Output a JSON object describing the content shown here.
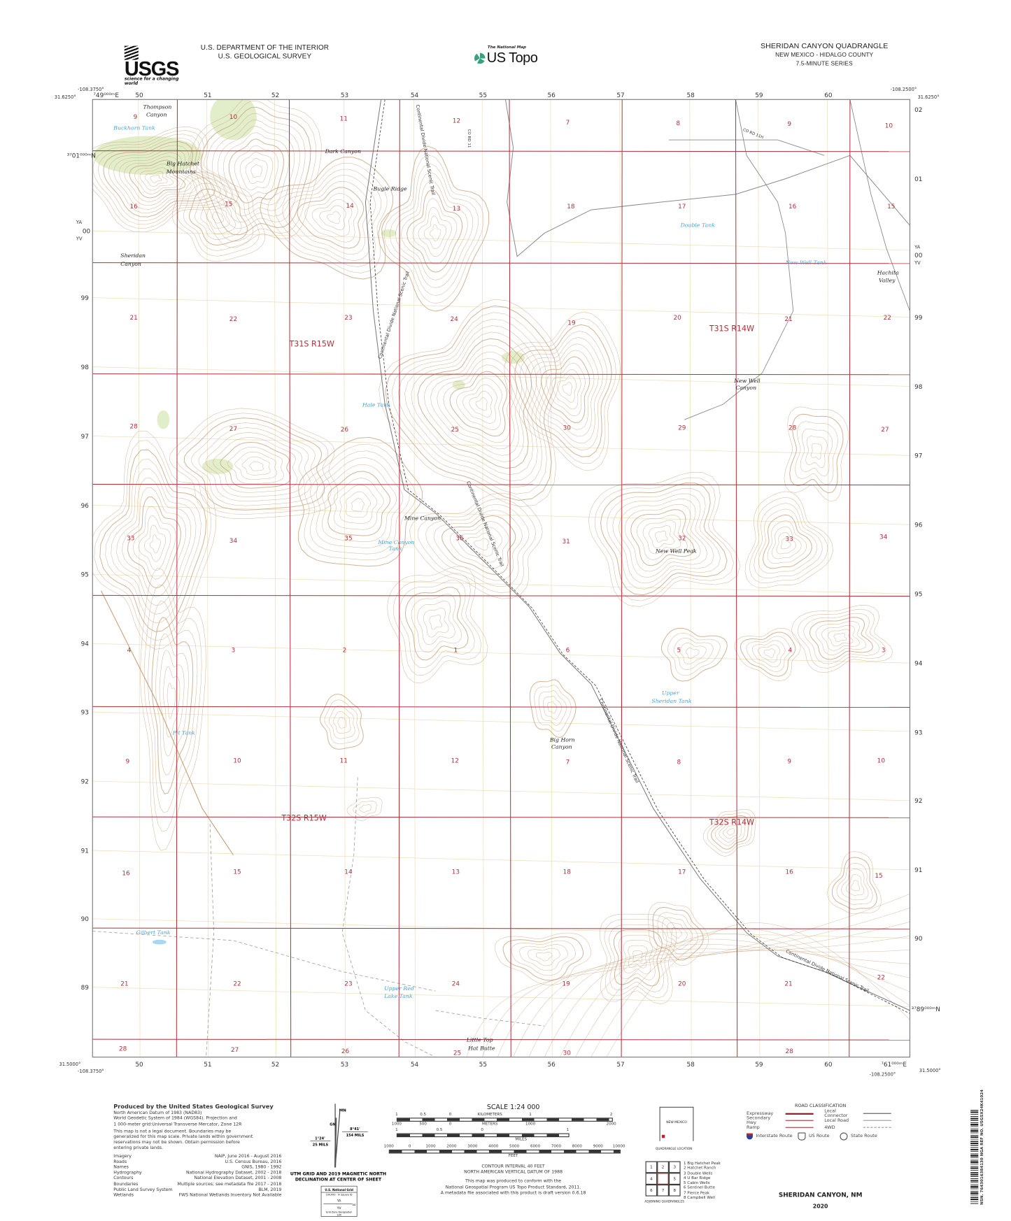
{
  "header": {
    "agency_logo_text": "USGS",
    "agency_logo_tagline": "science for a changing world",
    "department": "U.S. DEPARTMENT OF THE INTERIOR",
    "survey": "U.S. GEOLOGICAL SURVEY",
    "national_map_small": "The National Map",
    "national_map_big": "US Topo",
    "quad_title": "SHERIDAN CANYON QUADRANGLE",
    "state_county": "NEW MEXICO - HIDALGO COUNTY",
    "series": "7.5-MINUTE SERIES"
  },
  "corners": {
    "top_left_lon": "-108.3750°",
    "top_left_lat": "31.6250°",
    "top_right_lon": "-108.2500°",
    "top_right_lat": "31.6250°",
    "bottom_left_lat": "31.5000°",
    "bottom_left_lon": "-108.3750°",
    "bottom_right_lon": "-108.2500°",
    "bottom_right_lat": "31.5000°"
  },
  "utm": {
    "easting_first": "⁷49⁰⁰⁰ᵐE",
    "easting_last": "⁷61⁰⁰⁰ᵐE",
    "eastings": [
      "50",
      "51",
      "52",
      "53",
      "54",
      "55",
      "56",
      "57",
      "58",
      "59",
      "60"
    ],
    "northing_left_first": "³⁷01⁰⁰⁰ᵐN",
    "northings_left": [
      "00",
      "99",
      "98",
      "97",
      "96",
      "95",
      "94",
      "93",
      "92",
      "91",
      "90",
      "89"
    ],
    "northings_right": [
      "02",
      "01",
      "00",
      "99",
      "98",
      "97",
      "96",
      "95",
      "94",
      "93",
      "92",
      "91",
      "90"
    ],
    "northing_right_last": "³⁷89⁰⁰⁰ᵐN",
    "grid_zone_top": "YA",
    "grid_zone_bottom": "YV"
  },
  "sections": [
    "9",
    "10",
    "11",
    "12",
    "7",
    "8",
    "9",
    "10",
    "16",
    "15",
    "14",
    "13",
    "18",
    "17",
    "16",
    "15",
    "21",
    "22",
    "23",
    "24",
    "19",
    "20",
    "21",
    "22",
    "28",
    "27",
    "26",
    "25",
    "30",
    "29",
    "28",
    "27",
    "33",
    "34",
    "35",
    "36",
    "31",
    "32",
    "33",
    "34",
    "4",
    "3",
    "2",
    "1",
    "6",
    "5",
    "4",
    "3",
    "9",
    "10",
    "11",
    "12",
    "7",
    "8",
    "9",
    "10",
    "16",
    "15",
    "14",
    "13",
    "18",
    "17",
    "16",
    "15",
    "21",
    "22",
    "23",
    "24",
    "19",
    "20",
    "21",
    "22",
    "28",
    "27",
    "26",
    "25",
    "30",
    "28"
  ],
  "townships": [
    "T31S R15W",
    "T31S R14W",
    "T32S R15W",
    "T32S R14W"
  ],
  "places": {
    "thompson_canyon": [
      "Thompson",
      "Canyon"
    ],
    "buckhorn_tank": "Buckhorn Tank",
    "dark_canyon": "Dark Canyon",
    "big_hatchet_mountains": [
      "Big Hatchet",
      "Mountains"
    ],
    "bugle_ridge": "Bugle Ridge",
    "sheridan_canyon": [
      "Sheridan",
      "Canyon"
    ],
    "double_tank": "Double Tank",
    "new_well_tank": "New Well Tank",
    "hachita_valley": [
      "Hachita",
      "Valley"
    ],
    "hale_tank": "Hale Tank",
    "new_well_canyon": [
      "New Well",
      "Canyon"
    ],
    "mine_canyon": "Mine Canyon",
    "mine_canyon_tank": [
      "Mine Canyon",
      "Tank"
    ],
    "new_well_peak": "New Well Peak",
    "upper_sheridan_tank": [
      "Upper",
      "Sheridan Tank"
    ],
    "big_horn_canyon": [
      "Big Horn",
      "Canyon"
    ],
    "pit_tank": "Pit Tank",
    "gilbert_tank": "Gilbert Tank",
    "upper_red_lake_tank": [
      "Upper Red",
      "Lake Tank"
    ],
    "little_top_hat_butte": [
      "Little Top",
      "Hat Butte"
    ],
    "trail": "Continental Divide National Scenic Trail",
    "county_road_11h": "CO RD 11H",
    "county_road_11": "CO RD 11"
  },
  "colors": {
    "section_line": "#b0303a",
    "contour": "#c8a27c",
    "water_text": "#4aa3d6",
    "vegetation": "#dbe9bd",
    "road": "#8a8a8a"
  },
  "footer": {
    "produced_title": "Produced by the United States Geological Survey",
    "datum_lines": [
      "North American Datum of 1983 (NAD83)",
      "World Geodetic System of 1984 (WGS84). Projection and",
      "1 000-meter grid:Universal Transverse Mercator, Zone 12R"
    ],
    "legal_lines": [
      "This map is not a legal document. Boundaries may be",
      "generalized for this map scale. Private lands within government",
      "reservations may not be shown. Obtain permission before",
      "entering private lands."
    ],
    "credits": [
      {
        "label": "Imagery",
        "source": "NAIP, June 2016 - August 2016"
      },
      {
        "label": "Roads",
        "source": "U.S. Census Bureau, 2016"
      },
      {
        "label": "Names",
        "source": "GNIS, 1980 - 1992"
      },
      {
        "label": "Hydrography",
        "source": "National Hydrography Dataset, 2002 - 2018"
      },
      {
        "label": "Contours",
        "source": "National Elevation Dataset, 2001 - 2008"
      },
      {
        "label": "Boundaries",
        "source": "Multiple sources; see metadata file 2017 - 2018"
      },
      {
        "label": "Public Land Survey System",
        "source": "BLM, 2019"
      },
      {
        "label": "Wetlands",
        "source": "FWS National Wetlands Inventory Not Available"
      }
    ],
    "declination": {
      "mn": "MN",
      "gn": "GN",
      "grid_angle": "1°24'",
      "grid_mils": "25 MILS",
      "mag_angle": "8°41'",
      "mag_mils": "154 MILS",
      "caption": [
        "UTM GRID AND 2019 MAGNETIC NORTH",
        "DECLINATION AT CENTER OF SHEET"
      ]
    },
    "usng": {
      "title": "U.S. National Grid",
      "subtitle": "100,000 - m Square ID",
      "top": "YA",
      "value": "00",
      "bottom": "YV",
      "zone_label": "Grid Zone Designation",
      "zone": "12R"
    },
    "scale": {
      "title": "SCALE 1:24 000",
      "km_ticks": [
        "1",
        "0.5",
        "0",
        "1",
        "2"
      ],
      "km_label": "KILOMETERS",
      "m_ticks": [
        "1000",
        "500",
        "0",
        "1000",
        "2000"
      ],
      "m_label": "METERS",
      "mi_ticks": [
        "1",
        "0.5",
        "0",
        "1"
      ],
      "mi_label": "MILES",
      "ft_ticks": [
        "1000",
        "0",
        "1000",
        "2000",
        "3000",
        "4000",
        "5000",
        "6000",
        "7000",
        "8000",
        "9000",
        "10000"
      ],
      "ft_label": "FEET"
    },
    "contour_lines": [
      "CONTOUR INTERVAL 40 FEET",
      "NORTH AMERICAN VERTICAL DATUM OF 1988"
    ],
    "standard_lines": [
      "This map was produced to conform with the",
      "National Geospatial Program US Topo Product Standard, 2011.",
      "A metadata file associated with this product is draft version 0.6.18"
    ],
    "location": {
      "state": "NEW MEXICO",
      "caption": "QUADRANGLE LOCATION"
    },
    "adjoining": {
      "cells": [
        "1",
        "2",
        "3",
        "4",
        "",
        "5",
        "6",
        "7",
        "8"
      ],
      "list": [
        "1 Big Hatchet Peak",
        "2 Hatchet Ranch",
        "3 Double Wells",
        "4 U Bar Ridge",
        "5 Cabin Wells",
        "6 Sentinel Butte",
        "7 Pierce Peak",
        "8 Campbell Well"
      ],
      "caption": "ADJOINING QUADRANGLES"
    },
    "roads": {
      "title": "ROAD CLASSIFICATION",
      "left": [
        "Expressway",
        "Secondary Hwy",
        "Ramp"
      ],
      "right": [
        "Local Connector",
        "Local Road",
        "4WD"
      ],
      "interstate": "Interstate Route",
      "us_route": "US Route",
      "state_route": "State Route"
    },
    "sheet_name": "SHERIDAN CANYON,  NM",
    "year": "2020",
    "barcode_text": "NSN. 7643016384130   NGA REF NO. USGSX24K41024"
  }
}
